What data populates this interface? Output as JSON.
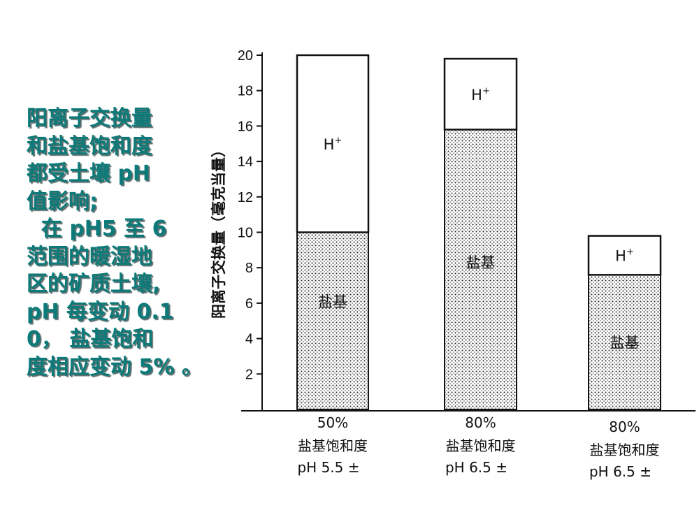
{
  "side_text": {
    "lines": [
      "阳离子交换量",
      "和盐基饱和度",
      "都受土壤 pH",
      "值影响;",
      "  在 pH5 至 6",
      "范围的暖湿地",
      "区的矿质土壤,",
      "pH 每变动 0.1",
      "0， 盐基饱和",
      "度相应变动 5% 。"
    ]
  },
  "chart_data": {
    "type": "bar",
    "stacked": true,
    "ylabel": "阳离子交换量（毫克当量）",
    "xlabel": "",
    "ylim": [
      0,
      20
    ],
    "yticks": [
      2,
      4,
      6,
      8,
      10,
      12,
      14,
      16,
      18,
      20
    ],
    "categories": [
      {
        "pct": "50%",
        "label": "盐基饱和度",
        "ph": "pH 5.5 ±"
      },
      {
        "pct": "80%",
        "label": "盐基饱和度",
        "ph": "pH 6.5 ±"
      },
      {
        "pct": "80%",
        "label": "盐基饱和度",
        "ph": "pH 6.5 ±"
      }
    ],
    "series": [
      {
        "name": "盐基",
        "values": [
          10.0,
          15.8,
          7.6
        ],
        "fill": "dotted"
      },
      {
        "name": "H+",
        "values": [
          10.0,
          4.0,
          2.2
        ],
        "fill": "white"
      }
    ],
    "grid": false
  }
}
